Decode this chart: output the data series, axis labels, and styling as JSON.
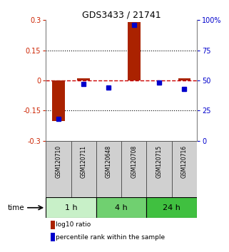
{
  "title": "GDS3433 / 21741",
  "samples": [
    "GSM120710",
    "GSM120711",
    "GSM120648",
    "GSM120708",
    "GSM120715",
    "GSM120716"
  ],
  "log10_ratio": [
    -0.2,
    0.01,
    0.0,
    0.29,
    0.0,
    0.01
  ],
  "percentile_rank": [
    18,
    47,
    44,
    96,
    48,
    43
  ],
  "ylim_left": [
    -0.3,
    0.3
  ],
  "ylim_right": [
    0,
    100
  ],
  "yticks_left": [
    -0.3,
    -0.15,
    0.0,
    0.15,
    0.3
  ],
  "ytick_labels_left": [
    "-0.3",
    "-0.15",
    "0",
    "0.15",
    "0.3"
  ],
  "yticks_right": [
    0,
    25,
    50,
    75,
    100
  ],
  "ytick_labels_right": [
    "0",
    "25",
    "50",
    "75",
    "100%"
  ],
  "hlines": [
    0.15,
    -0.15
  ],
  "groups": [
    {
      "label": "1 h",
      "samples": [
        0,
        1
      ],
      "color": "#c8f0c8"
    },
    {
      "label": "4 h",
      "samples": [
        2,
        3
      ],
      "color": "#70d070"
    },
    {
      "label": "24 h",
      "samples": [
        4,
        5
      ],
      "color": "#40c040"
    }
  ],
  "bar_color": "#aa2200",
  "dot_color": "#0000cc",
  "hline_color": "#cc0000",
  "hline_style": "--",
  "sample_box_color": "#d0d0d0",
  "sample_box_edge": "#555555",
  "bar_width": 0.5,
  "time_label": "time",
  "legend_ratio_label": "log10 ratio",
  "legend_percentile_label": "percentile rank within the sample"
}
